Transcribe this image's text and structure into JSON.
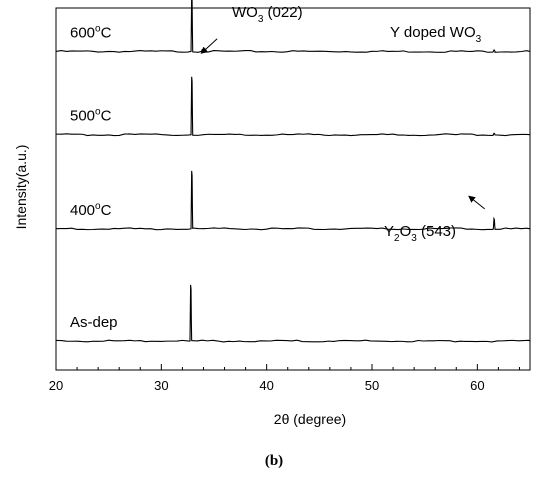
{
  "chart_data": {
    "type": "line",
    "title": "Y doped WO₃",
    "xlabel": "2θ (degree)",
    "ylabel": "Intensity(a.u.)",
    "xlim": [
      20,
      65
    ],
    "x_ticks": [
      20,
      30,
      40,
      50,
      60
    ],
    "y_ticks_shown": false,
    "grid": false,
    "legend": "none",
    "series": [
      {
        "name": "600°C",
        "name_main": "600",
        "name_sup": "o",
        "name_tail": "C",
        "baseline": 0.88,
        "peaks": [
          {
            "x": 32.9,
            "height": 0.155
          },
          {
            "x": 33.9,
            "height": 0.005
          },
          {
            "x": 61.6,
            "height": 0.004
          }
        ]
      },
      {
        "name": "500°C",
        "name_main": "500",
        "name_sup": "o",
        "name_tail": "C",
        "baseline": 0.65,
        "peaks": [
          {
            "x": 32.9,
            "height": 0.16
          },
          {
            "x": 61.6,
            "height": 0.004
          }
        ]
      },
      {
        "name": "400°C",
        "name_main": "400",
        "name_sup": "o",
        "name_tail": "C",
        "baseline": 0.39,
        "peaks": [
          {
            "x": 32.9,
            "height": 0.16
          },
          {
            "x": 61.6,
            "height": 0.028
          }
        ]
      },
      {
        "name": "As-dep",
        "name_main": "As-dep",
        "name_sup": "",
        "name_tail": "",
        "baseline": 0.08,
        "peaks": [
          {
            "x": 32.8,
            "height": 0.155
          }
        ]
      }
    ],
    "annotations": [
      {
        "id": "wo3-peak",
        "main": "WO",
        "sub": "3",
        "tail": " (022)",
        "text": "WO₃ (022)",
        "arrow_from": [
          35.3,
          0.915
        ],
        "arrow_to": [
          33.8,
          0.875
        ]
      },
      {
        "id": "y2o3-peak",
        "main": "Y",
        "sub": "2",
        "main2": "O",
        "sub2": "3",
        "tail": " (543)",
        "text": "Y₂O₃ (543)",
        "arrow_from": [
          60.7,
          0.445
        ],
        "arrow_to": [
          59.2,
          0.48
        ]
      }
    ],
    "title_parts": {
      "main": "Y doped WO",
      "sub": "3"
    },
    "xlabel_parts": {
      "main": "2θ",
      "tail": " (degree)"
    }
  },
  "caption": "(b)"
}
